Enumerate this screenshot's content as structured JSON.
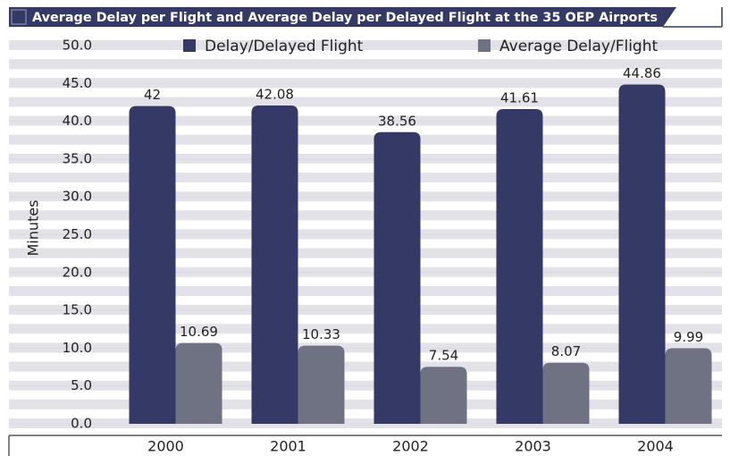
{
  "chart_data": {
    "type": "bar",
    "title": "Average Delay per Flight and Average Delay per Delayed Flight at the 35 OEP Airports",
    "y_label": "Minutes",
    "categories": [
      "2000",
      "2001",
      "2002",
      "2003",
      "2004"
    ],
    "series": [
      {
        "name": "Delay/Delayed Flight",
        "color": "#343966",
        "values": [
          42,
          42.08,
          38.56,
          41.61,
          44.86
        ]
      },
      {
        "name": "Average Delay/Flight",
        "color": "#6e7283",
        "values": [
          10.69,
          10.33,
          7.54,
          8.07,
          9.99
        ]
      }
    ],
    "ylim": [
      0,
      50
    ],
    "yticks": [
      {
        "value": 0,
        "label": "0.0"
      },
      {
        "value": 5,
        "label": "5.0"
      },
      {
        "value": 10,
        "label": "10.0"
      },
      {
        "value": 15,
        "label": "15.0"
      },
      {
        "value": 20,
        "label": "20.0"
      },
      {
        "value": 25,
        "label": "25.0"
      },
      {
        "value": 30,
        "label": "30.0"
      },
      {
        "value": 35,
        "label": "35.0"
      },
      {
        "value": 40,
        "label": "40.0"
      },
      {
        "value": 45,
        "label": "45.0"
      },
      {
        "value": 50,
        "label": "50.0"
      }
    ],
    "legend": "top"
  }
}
